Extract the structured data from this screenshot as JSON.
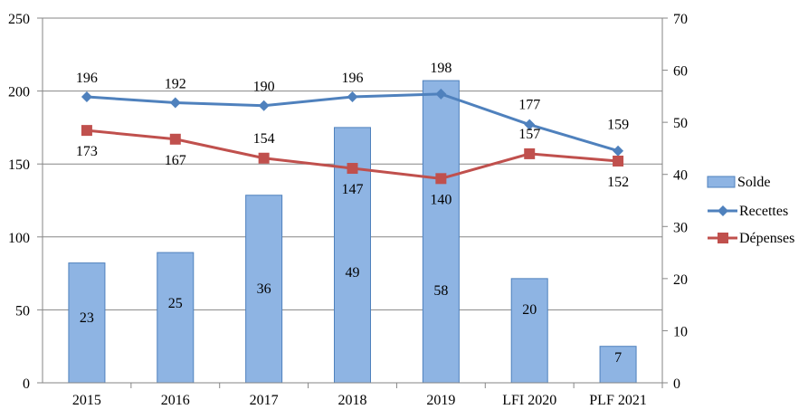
{
  "chart_data": {
    "type": "bar+line",
    "title": "",
    "categories": [
      "2015",
      "2016",
      "2017",
      "2018",
      "2019",
      "LFI 2020",
      "PLF 2021"
    ],
    "series": [
      {
        "name": "Solde",
        "type": "bar",
        "axis": "right",
        "values": [
          23,
          25,
          36,
          49,
          58,
          20,
          7
        ],
        "color": "#8EB4E3"
      },
      {
        "name": "Recettes",
        "type": "line",
        "axis": "left",
        "marker": "diamond",
        "values": [
          196,
          192,
          190,
          196,
          198,
          177,
          159
        ],
        "color": "#4F81BD"
      },
      {
        "name": "Dépenses",
        "type": "line",
        "axis": "left",
        "marker": "square",
        "values": [
          173,
          167,
          154,
          147,
          140,
          157,
          152
        ],
        "color": "#C0504D"
      }
    ],
    "left_axis": {
      "range": [
        0,
        250
      ],
      "ticks": [
        "0",
        "50",
        "100",
        "150",
        "200",
        "250"
      ]
    },
    "right_axis": {
      "range": [
        0,
        70
      ],
      "ticks": [
        "0",
        "10",
        "20",
        "30",
        "40",
        "50",
        "60",
        "70"
      ]
    },
    "grid": true,
    "legend": "right"
  }
}
